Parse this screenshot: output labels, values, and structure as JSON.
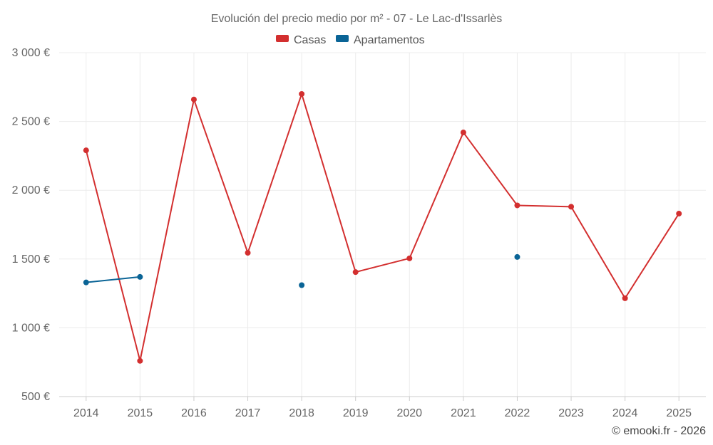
{
  "chart_data": {
    "type": "line",
    "title": "Evolución del precio medio por m² - 07 - Le Lac-d'Issarlès",
    "categories": [
      "2014",
      "2015",
      "2016",
      "2017",
      "2018",
      "2019",
      "2020",
      "2021",
      "2022",
      "2023",
      "2024",
      "2025"
    ],
    "ylim": [
      500,
      3000
    ],
    "yticks": [
      500,
      1000,
      1500,
      2000,
      2500,
      3000
    ],
    "ytick_labels": [
      "500 €",
      "1 000 €",
      "1 500 €",
      "2 000 €",
      "2 500 €",
      "3 000 €"
    ],
    "grid": true,
    "legend_position": "top-center",
    "series": [
      {
        "name": "Casas",
        "color": "#d32f2f",
        "values": [
          2290,
          760,
          2660,
          1545,
          2700,
          1405,
          1505,
          2420,
          1890,
          1880,
          1215,
          1830
        ]
      },
      {
        "name": "Apartamentos",
        "color": "#0a6496",
        "values": [
          1330,
          1370,
          null,
          null,
          1310,
          null,
          null,
          null,
          1515,
          null,
          null,
          null
        ]
      }
    ]
  },
  "credit": "© emooki.fr - 2026"
}
